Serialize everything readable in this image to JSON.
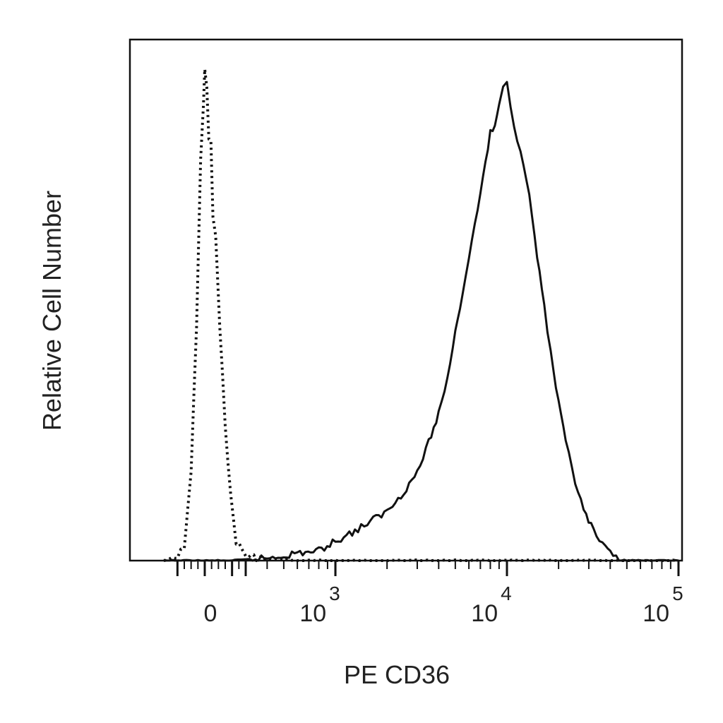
{
  "chart_data": {
    "type": "line",
    "xlabel": "PE CD36",
    "ylabel": "Relative Cell Number",
    "x_scale": "biexponential",
    "x_tick_labels": [
      {
        "label": "0",
        "value": 0
      },
      {
        "label": "10",
        "exp": "3",
        "value": 1000
      },
      {
        "label": "10",
        "exp": "4",
        "value": 10000
      },
      {
        "label": "10",
        "exp": "5",
        "value": 100000
      }
    ],
    "y_ticks_shown": false,
    "legend": "none",
    "grid": false,
    "colors": {
      "line": "#111111",
      "frame": "#111111",
      "text": "#222222"
    },
    "series": [
      {
        "style": "dotted",
        "points": [
          [
            -300,
            0
          ],
          [
            -200,
            0.5
          ],
          [
            -150,
            3
          ],
          [
            -100,
            18
          ],
          [
            -60,
            48
          ],
          [
            -30,
            82
          ],
          [
            -10,
            92
          ],
          [
            0,
            100
          ],
          [
            15,
            96
          ],
          [
            30,
            86
          ],
          [
            45,
            85
          ],
          [
            60,
            70
          ],
          [
            80,
            66
          ],
          [
            110,
            47
          ],
          [
            150,
            28
          ],
          [
            190,
            13
          ],
          [
            230,
            4
          ],
          [
            300,
            1
          ],
          [
            400,
            0.3
          ],
          [
            600,
            0
          ],
          [
            100000,
            0
          ]
        ]
      },
      {
        "style": "solid",
        "points": [
          [
            -300,
            0
          ],
          [
            200,
            0
          ],
          [
            400,
            0.5
          ],
          [
            600,
            1.5
          ],
          [
            800,
            2
          ],
          [
            1000,
            4
          ],
          [
            1300,
            6
          ],
          [
            1600,
            8
          ],
          [
            2000,
            10
          ],
          [
            2500,
            14
          ],
          [
            3000,
            18
          ],
          [
            3500,
            24
          ],
          [
            4000,
            30
          ],
          [
            4500,
            37
          ],
          [
            5000,
            47
          ],
          [
            5500,
            54
          ],
          [
            6000,
            62
          ],
          [
            6500,
            68
          ],
          [
            7000,
            75
          ],
          [
            7500,
            81
          ],
          [
            8000,
            87
          ],
          [
            8500,
            88
          ],
          [
            9000,
            93
          ],
          [
            9500,
            96
          ],
          [
            10000,
            98
          ],
          [
            10500,
            93
          ],
          [
            11000,
            88
          ],
          [
            12000,
            84
          ],
          [
            13000,
            78
          ],
          [
            14000,
            70
          ],
          [
            15000,
            62
          ],
          [
            16500,
            52
          ],
          [
            18000,
            42
          ],
          [
            20000,
            32
          ],
          [
            22000,
            24
          ],
          [
            25000,
            16
          ],
          [
            28000,
            10
          ],
          [
            32000,
            6
          ],
          [
            36000,
            3
          ],
          [
            40000,
            1.5
          ],
          [
            45000,
            0.5
          ],
          [
            50000,
            0
          ],
          [
            100000,
            0
          ]
        ]
      }
    ]
  }
}
